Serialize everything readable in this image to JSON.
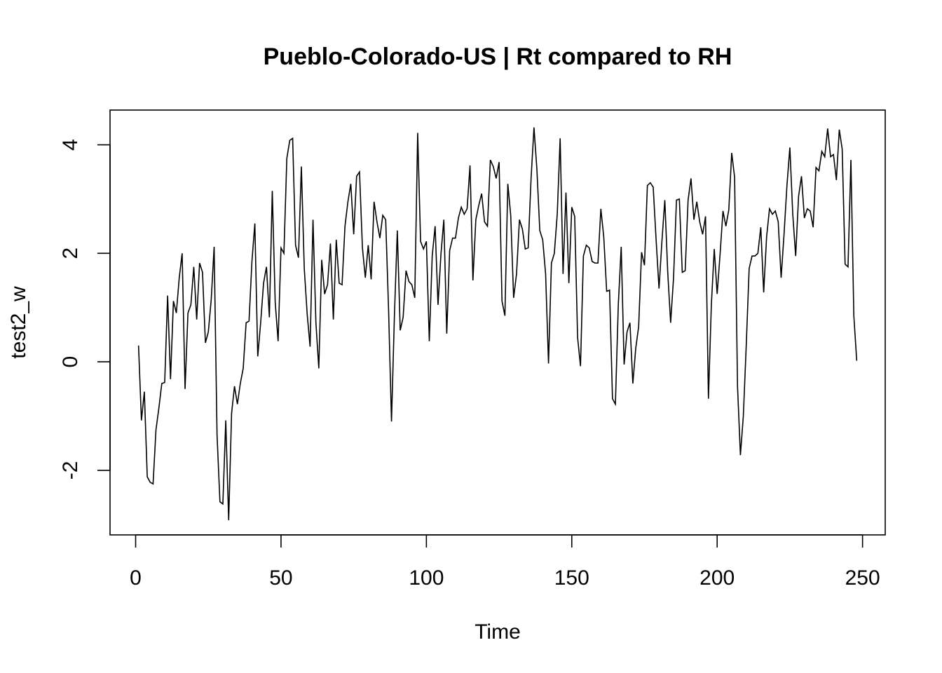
{
  "chart_data": {
    "type": "line",
    "title": "Pueblo-Colorado-US | Rt compared to RH",
    "xlabel": "Time",
    "ylabel": "test2_w",
    "xlim": [
      -8.8,
      257.8
    ],
    "ylim": [
      -3.19,
      4.64
    ],
    "x_ticks": [
      0,
      50,
      100,
      150,
      200,
      250
    ],
    "y_ticks": [
      -2,
      0,
      2,
      4
    ],
    "x_tick_labels": [
      "0",
      "50",
      "100",
      "150",
      "200",
      "250"
    ],
    "y_tick_labels": [
      "-2",
      "0",
      "2",
      "4"
    ],
    "x_start": 1,
    "grid": false,
    "line_color": "#000000",
    "series": [
      {
        "values": [
          0.3,
          -1.08,
          -0.55,
          -2.12,
          -2.22,
          -2.25,
          -1.25,
          -0.85,
          -0.4,
          -0.38,
          1.22,
          -0.32,
          1.12,
          0.9,
          1.55,
          2.0,
          -0.5,
          0.9,
          1.05,
          1.75,
          0.78,
          1.82,
          1.65,
          0.35,
          0.55,
          1.15,
          2.12,
          -1.35,
          -2.58,
          -2.62,
          -1.08,
          -2.92,
          -0.95,
          -0.45,
          -0.78,
          -0.4,
          -0.12,
          0.72,
          0.75,
          1.85,
          2.55,
          0.1,
          0.72,
          1.45,
          1.75,
          0.82,
          3.15,
          1.1,
          0.38,
          2.1,
          2.0,
          3.75,
          4.08,
          4.12,
          2.15,
          1.92,
          3.6,
          1.72,
          0.88,
          0.28,
          2.62,
          0.72,
          -0.12,
          1.88,
          1.25,
          1.42,
          2.18,
          0.78,
          2.25,
          1.45,
          1.42,
          2.5,
          2.95,
          3.28,
          2.35,
          3.42,
          3.5,
          2.1,
          1.55,
          2.15,
          1.52,
          2.95,
          2.58,
          2.28,
          2.7,
          2.62,
          0.95,
          -1.1,
          0.85,
          2.42,
          0.58,
          0.82,
          1.68,
          1.48,
          1.42,
          1.18,
          4.22,
          2.22,
          2.08,
          2.22,
          0.38,
          1.95,
          2.5,
          1.05,
          1.98,
          2.62,
          0.52,
          2.05,
          2.28,
          2.28,
          2.65,
          2.85,
          2.72,
          2.82,
          3.62,
          1.5,
          2.62,
          2.88,
          3.1,
          2.58,
          2.5,
          3.72,
          3.6,
          3.38,
          3.68,
          1.12,
          0.85,
          3.28,
          2.7,
          1.18,
          1.62,
          2.62,
          2.45,
          2.08,
          2.1,
          3.38,
          4.32,
          3.55,
          2.42,
          2.25,
          1.62,
          -0.03,
          1.82,
          2.0,
          2.72,
          4.12,
          1.62,
          3.12,
          1.45,
          2.85,
          2.68,
          0.45,
          -0.08,
          1.95,
          2.15,
          2.1,
          1.85,
          1.82,
          1.82,
          2.82,
          2.3,
          1.3,
          1.32,
          -0.68,
          -0.78,
          1.05,
          2.12,
          -0.05,
          0.55,
          0.72,
          -0.4,
          0.25,
          0.65,
          2.02,
          1.78,
          3.25,
          3.3,
          3.22,
          2.25,
          1.35,
          2.22,
          2.98,
          1.65,
          0.72,
          1.55,
          2.98,
          3.0,
          1.65,
          1.68,
          2.98,
          3.38,
          2.62,
          2.95,
          2.58,
          2.35,
          2.68,
          -0.68,
          1.05,
          2.08,
          1.25,
          1.98,
          2.78,
          2.5,
          2.8,
          3.85,
          3.4,
          -0.45,
          -1.72,
          -1.0,
          0.3,
          1.72,
          1.95,
          1.95,
          2.0,
          2.48,
          1.28,
          2.3,
          2.82,
          2.72,
          2.78,
          2.58,
          1.55,
          2.35,
          3.25,
          3.95,
          2.72,
          1.95,
          3.05,
          3.42,
          2.65,
          2.82,
          2.78,
          2.48,
          3.58,
          3.52,
          3.88,
          3.78,
          4.3,
          3.78,
          3.82,
          3.35,
          4.28,
          3.92,
          1.8,
          1.75,
          3.72,
          0.85,
          0.02
        ]
      }
    ]
  }
}
